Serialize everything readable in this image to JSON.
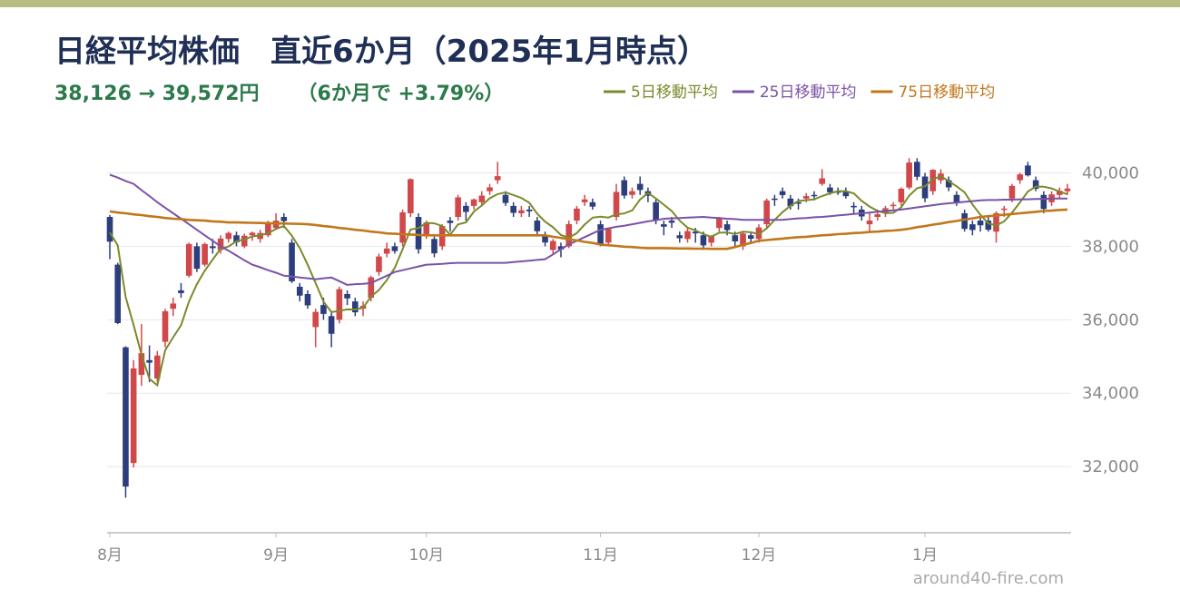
{
  "chart_data": {
    "type": "candlestick",
    "title": "日経平均株価　直近6か月（2025年1月時点）",
    "subtitle": "38,126 → 39,572円",
    "subtitle_note": "（6か月で +3.79%）",
    "watermark": "around40-fire.com",
    "up_color": "#d0484a",
    "down_color": "#2c3e7c",
    "ylim": [
      30200,
      41000
    ],
    "yticks": [
      {
        "value": 32000,
        "label": "32,000"
      },
      {
        "value": 34000,
        "label": "34,000"
      },
      {
        "value": 36000,
        "label": "36,000"
      },
      {
        "value": 38000,
        "label": "38,000"
      },
      {
        "value": 40000,
        "label": "40,000"
      }
    ],
    "xticks": [
      {
        "value": 0,
        "label": "8月"
      },
      {
        "value": 21,
        "label": "9月"
      },
      {
        "value": 40,
        "label": "10月"
      },
      {
        "value": 62,
        "label": "11月"
      },
      {
        "value": 82,
        "label": "12月"
      },
      {
        "value": 103,
        "label": "1月"
      }
    ],
    "grid": true,
    "open": [
      38800,
      37500,
      35250,
      32100,
      34500,
      34900,
      34400,
      35400,
      36300,
      36800,
      37200,
      38000,
      37500,
      38000,
      37900,
      38200,
      38300,
      38000,
      38300,
      38200,
      38300,
      38500,
      38800,
      38100,
      36900,
      36700,
      35800,
      36400,
      36100,
      36000,
      36700,
      36500,
      36300,
      36600,
      37300,
      37800,
      38000,
      38100,
      38900,
      38800,
      38300,
      38200,
      38000,
      38700,
      38800,
      39100,
      39100,
      39200,
      39500,
      39800,
      39400,
      39100,
      38900,
      39000,
      38700,
      38300,
      37900,
      38000,
      38000,
      38700,
      39200,
      39200,
      38600,
      38100,
      38800,
      39800,
      39400,
      39700,
      39500,
      39200,
      38600,
      38700,
      38300,
      38200,
      38400,
      38300,
      38100,
      38500,
      38600,
      38300,
      38000,
      38300,
      38200,
      38600,
      39300,
      39500,
      39300,
      39200,
      39300,
      39400,
      39700,
      39600,
      39500,
      39500,
      39100,
      39000,
      38600,
      38800,
      38900,
      39100,
      39200,
      39600,
      40300,
      39900,
      39500,
      39800,
      39800,
      39400,
      38900,
      38600,
      38700,
      38700,
      38400,
      39000,
      39300,
      39800,
      40200,
      39800,
      39400,
      39200,
      39400,
      39500
    ],
    "high": [
      38850,
      37550,
      35280,
      34900,
      35880,
      35300,
      35150,
      36300,
      36600,
      37000,
      38100,
      38100,
      38100,
      38200,
      38300,
      38400,
      38400,
      38350,
      38400,
      38450,
      38700,
      38900,
      38900,
      38200,
      37000,
      36800,
      36300,
      36600,
      36200,
      36900,
      36800,
      36600,
      36500,
      37200,
      37800,
      38100,
      38100,
      39000,
      39850,
      38900,
      38700,
      38300,
      38600,
      38800,
      39400,
      39200,
      39300,
      39500,
      39700,
      40300,
      39500,
      39200,
      39100,
      39100,
      38800,
      38400,
      38200,
      38100,
      38700,
      39100,
      39400,
      39300,
      38700,
      38500,
      39700,
      39900,
      39600,
      39900,
      39600,
      39300,
      38700,
      38800,
      38400,
      38500,
      38500,
      38400,
      38300,
      38800,
      38700,
      38400,
      38400,
      38400,
      38600,
      39300,
      39400,
      39600,
      39400,
      39300,
      39450,
      39500,
      40100,
      39700,
      39600,
      39600,
      39200,
      39100,
      38900,
      39000,
      39100,
      39200,
      39600,
      40400,
      40400,
      40000,
      40100,
      40100,
      39900,
      39500,
      39000,
      38700,
      38800,
      38800,
      38950,
      39100,
      39700,
      40000,
      40300,
      39900,
      39500,
      39500,
      39600,
      39700
    ],
    "low": [
      37650,
      35880,
      31156,
      31980,
      34200,
      34300,
      34300,
      35250,
      36100,
      36600,
      37150,
      37300,
      37450,
      37800,
      37800,
      38100,
      38000,
      37950,
      38150,
      38100,
      38250,
      38450,
      38500,
      37000,
      36500,
      36300,
      35250,
      36000,
      35250,
      35900,
      36400,
      36100,
      36100,
      36500,
      37200,
      37700,
      37800,
      38000,
      38800,
      37800,
      38200,
      37700,
      37900,
      38400,
      38700,
      38700,
      39000,
      39100,
      39400,
      39700,
      39100,
      38800,
      38800,
      38800,
      38300,
      38000,
      37800,
      37700,
      37950,
      38600,
      39100,
      39000,
      38000,
      38000,
      38700,
      39300,
      39300,
      39400,
      39200,
      38600,
      38300,
      38500,
      38100,
      38100,
      38100,
      37900,
      38000,
      38400,
      38300,
      38000,
      37900,
      38100,
      38100,
      38500,
      39100,
      39300,
      39000,
      39000,
      39200,
      39250,
      39650,
      39400,
      39400,
      39300,
      38900,
      38700,
      38400,
      38700,
      38800,
      39000,
      39100,
      39550,
      39800,
      39200,
      39400,
      39700,
      39500,
      39100,
      38400,
      38300,
      38400,
      38400,
      38100,
      38800,
      39200,
      39700,
      39900,
      39500,
      38900,
      39100,
      39300,
      39400
    ],
    "close": [
      38126,
      35909,
      31458,
      34675,
      35089,
      34831,
      35025,
      36232,
      36442,
      36726,
      38062,
      37388,
      38062,
      37951,
      38211,
      38364,
      38110,
      38288,
      38371,
      38362,
      38647,
      38700,
      38686,
      37047,
      36657,
      36391,
      36215,
      36159,
      35619,
      36833,
      36581,
      36203,
      36380,
      37155,
      37723,
      37940,
      37870,
      38925,
      39829,
      37919,
      38651,
      37808,
      38552,
      38635,
      39332,
      38937,
      39277,
      39380,
      39605,
      39910,
      39180,
      38911,
      38981,
      38954,
      38411,
      38104,
      38143,
      37913,
      38605,
      39027,
      39277,
      39081,
      38053,
      38474,
      39480,
      39381,
      39500,
      39533,
      39376,
      38721,
      38535,
      38642,
      38220,
      38414,
      38352,
      38026,
      38283,
      38780,
      38442,
      38134,
      38349,
      38208,
      38513,
      39248,
      39276,
      39395,
      39091,
      39160,
      39367,
      39372,
      39849,
      39470,
      39457,
      39364,
      39081,
      38813,
      38701,
      38873,
      39037,
      39130,
      39568,
      40281,
      39894,
      39307,
      40083,
      39981,
      39605,
      39190,
      38474,
      38444,
      38572,
      38451,
      38902,
      39027,
      39646,
      39958,
      39931,
      39565,
      39016,
      39414,
      39513,
      39572
    ],
    "moving_averages": [
      {
        "name": "5日移動平均",
        "color": "#7b8a2c",
        "values": [
          38377,
          38026,
          36624,
          35854,
          35051,
          34392,
          34216,
          35170,
          35524,
          35851,
          36497,
          36970,
          37336,
          37638,
          37935,
          37995,
          38140,
          38185,
          38269,
          38299,
          38356,
          38474,
          38553,
          38288,
          37947,
          37496,
          36999,
          36494,
          36208,
          36243,
          36281,
          36279,
          36323,
          36630,
          36808,
          37080,
          37414,
          37923,
          38457,
          38497,
          38639,
          38626,
          38552,
          38313,
          38596,
          38653,
          38947,
          39112,
          39306,
          39422,
          39470,
          39397,
          39317,
          39187,
          38887,
          38672,
          38519,
          38305,
          38235,
          38358,
          38593,
          38781,
          38809,
          38782,
          38873,
          38894,
          38978,
          39274,
          39454,
          39302,
          39133,
          38961,
          38699,
          38506,
          38433,
          38331,
          38259,
          38371,
          38377,
          38333,
          38398,
          38383,
          38329,
          38490,
          38719,
          38928,
          39105,
          39234,
          39258,
          39277,
          39368,
          39444,
          39503,
          39502,
          39444,
          39237,
          39083,
          38966,
          38901,
          38911,
          39062,
          39378,
          39582,
          39636,
          39827,
          39909,
          39774,
          39633,
          39467,
          39139,
          38857,
          38626,
          38569,
          38679,
          38920,
          39197,
          39493,
          39625,
          39623,
          39577,
          39488,
          39416
        ]
      },
      {
        "name": "25日移動平均",
        "color": "#7b52a6",
        "values": [
          39950,
          39870,
          39780,
          39700,
          39530,
          39370,
          39200,
          39050,
          38900,
          38750,
          38600,
          38450,
          38300,
          38150,
          38000,
          37880,
          37750,
          37620,
          37500,
          37430,
          37350,
          37280,
          37200,
          37180,
          37150,
          37130,
          37100,
          37130,
          37150,
          37050,
          36950,
          36970,
          36980,
          37000,
          37100,
          37200,
          37300,
          37350,
          37400,
          37450,
          37500,
          37510,
          37520,
          37540,
          37550,
          37550,
          37550,
          37550,
          37550,
          37550,
          37550,
          37570,
          37590,
          37610,
          37630,
          37650,
          37780,
          37920,
          38050,
          38150,
          38250,
          38350,
          38450,
          38490,
          38530,
          38560,
          38600,
          38640,
          38680,
          38710,
          38750,
          38760,
          38770,
          38780,
          38790,
          38800,
          38780,
          38770,
          38750,
          38740,
          38720,
          38720,
          38720,
          38720,
          38720,
          38720,
          38740,
          38760,
          38770,
          38790,
          38800,
          38820,
          38840,
          38860,
          38880,
          38900,
          38920,
          38940,
          38960,
          38980,
          39000,
          39030,
          39060,
          39090,
          39120,
          39150,
          39170,
          39190,
          39210,
          39230,
          39250,
          39260,
          39260,
          39270,
          39270,
          39280,
          39280,
          39290,
          39290,
          39300,
          39300,
          39300
        ]
      },
      {
        "name": "75日移動平均",
        "color": "#c1771a",
        "values": [
          38950,
          38920,
          38900,
          38870,
          38850,
          38820,
          38800,
          38770,
          38750,
          38740,
          38720,
          38710,
          38700,
          38680,
          38670,
          38650,
          38650,
          38645,
          38640,
          38635,
          38630,
          38625,
          38620,
          38615,
          38610,
          38600,
          38580,
          38550,
          38530,
          38500,
          38480,
          38450,
          38430,
          38400,
          38380,
          38350,
          38340,
          38330,
          38320,
          38310,
          38300,
          38300,
          38300,
          38300,
          38300,
          38300,
          38300,
          38300,
          38300,
          38300,
          38300,
          38300,
          38300,
          38300,
          38300,
          38300,
          38260,
          38230,
          38190,
          38160,
          38120,
          38090,
          38050,
          38030,
          38010,
          37990,
          37980,
          37960,
          37950,
          37950,
          37950,
          37945,
          37940,
          37940,
          37935,
          37935,
          37930,
          37930,
          37930,
          37980,
          38040,
          38090,
          38150,
          38170,
          38190,
          38210,
          38230,
          38250,
          38260,
          38280,
          38300,
          38310,
          38330,
          38340,
          38360,
          38370,
          38390,
          38400,
          38420,
          38430,
          38450,
          38480,
          38520,
          38550,
          38590,
          38620,
          38660,
          38690,
          38730,
          38760,
          38800,
          38820,
          38840,
          38860,
          38880,
          38900,
          38920,
          38940,
          38960,
          38970,
          38990,
          39000
        ]
      }
    ]
  }
}
